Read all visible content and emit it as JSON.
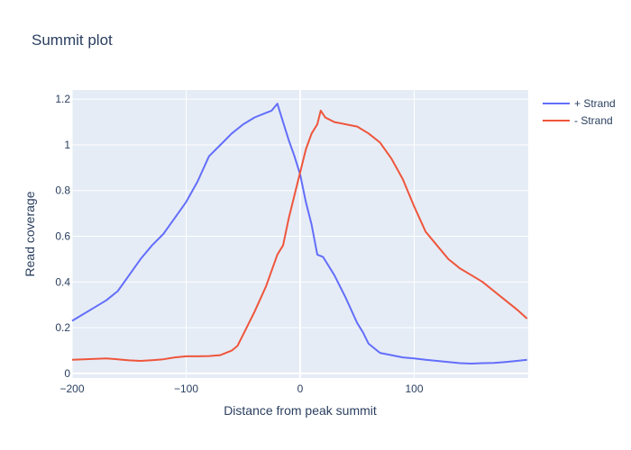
{
  "chart_data": {
    "type": "line",
    "title": "Summit plot",
    "xlabel": "Distance from peak summit",
    "ylabel": "Read coverage",
    "xlim": [
      -200,
      200
    ],
    "ylim": [
      -0.02,
      1.24
    ],
    "x_ticks": [
      -200,
      -100,
      0,
      100
    ],
    "x_tick_labels": [
      "−200",
      "−100",
      "0",
      "100"
    ],
    "y_ticks": [
      0,
      0.2,
      0.4,
      0.6,
      0.8,
      1,
      1.2
    ],
    "y_tick_labels": [
      "0",
      "0.2",
      "0.4",
      "0.6",
      "0.8",
      "1",
      "1.2"
    ],
    "grid": true,
    "legend_position": "top-right",
    "series": [
      {
        "name": "+ Strand",
        "color": "#636efa",
        "x": [
          -200,
          -190,
          -180,
          -170,
          -160,
          -150,
          -140,
          -130,
          -120,
          -110,
          -100,
          -90,
          -80,
          -70,
          -60,
          -50,
          -40,
          -30,
          -25,
          -20,
          -15,
          -10,
          -5,
          0,
          5,
          10,
          15,
          20,
          30,
          40,
          50,
          55,
          60,
          70,
          80,
          90,
          100,
          110,
          120,
          130,
          140,
          150,
          160,
          170,
          180,
          190,
          199
        ],
        "y": [
          0.23,
          0.26,
          0.29,
          0.32,
          0.36,
          0.43,
          0.5,
          0.56,
          0.61,
          0.68,
          0.75,
          0.84,
          0.95,
          1.0,
          1.05,
          1.09,
          1.12,
          1.14,
          1.15,
          1.18,
          1.1,
          1.02,
          0.95,
          0.87,
          0.75,
          0.65,
          0.52,
          0.51,
          0.43,
          0.33,
          0.22,
          0.18,
          0.13,
          0.09,
          0.08,
          0.07,
          0.066,
          0.06,
          0.055,
          0.05,
          0.045,
          0.043,
          0.045,
          0.046,
          0.05,
          0.055,
          0.06
        ]
      },
      {
        "name": "- Strand",
        "color": "#ef553b",
        "x": [
          -200,
          -190,
          -180,
          -170,
          -160,
          -150,
          -140,
          -130,
          -120,
          -110,
          -100,
          -90,
          -80,
          -70,
          -60,
          -55,
          -50,
          -40,
          -30,
          -20,
          -15,
          -10,
          -5,
          0,
          5,
          10,
          15,
          18,
          22,
          30,
          40,
          50,
          60,
          70,
          80,
          90,
          100,
          110,
          120,
          130,
          140,
          150,
          160,
          170,
          180,
          190,
          199
        ],
        "y": [
          0.06,
          0.062,
          0.064,
          0.066,
          0.062,
          0.057,
          0.055,
          0.058,
          0.062,
          0.07,
          0.075,
          0.075,
          0.076,
          0.08,
          0.1,
          0.12,
          0.17,
          0.27,
          0.38,
          0.52,
          0.56,
          0.68,
          0.78,
          0.88,
          0.98,
          1.05,
          1.09,
          1.15,
          1.12,
          1.1,
          1.09,
          1.08,
          1.05,
          1.01,
          0.94,
          0.85,
          0.73,
          0.62,
          0.56,
          0.5,
          0.46,
          0.43,
          0.4,
          0.36,
          0.32,
          0.28,
          0.24
        ]
      }
    ]
  }
}
